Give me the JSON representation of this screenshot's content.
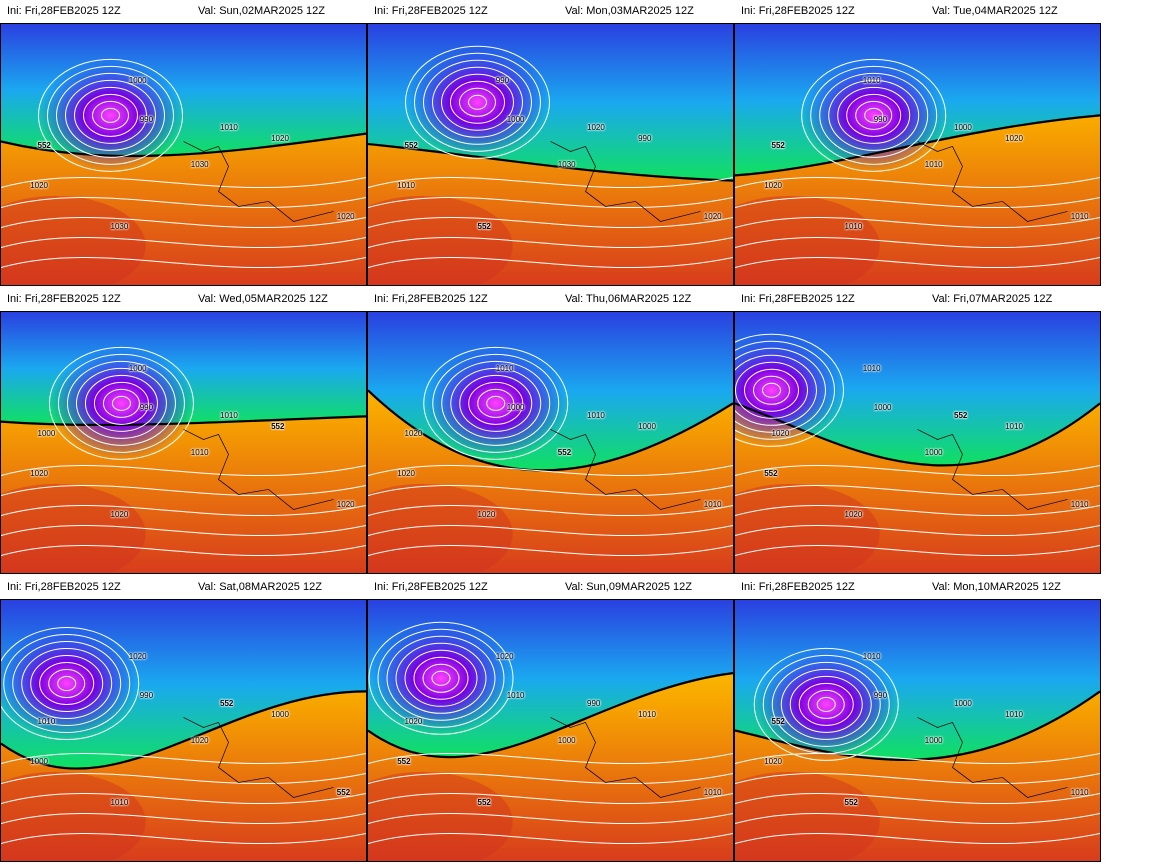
{
  "panels": [
    {
      "ini": "Ini: Fri,28FEB2025 12Z",
      "val": "Val: Sun,02MAR2025 12Z",
      "labels": [
        "1000",
        "990",
        "1010",
        "1020",
        "552",
        "1030",
        "1020",
        "1030",
        "1020"
      ]
    },
    {
      "ini": "Ini: Fri,28FEB2025 12Z",
      "val": "Val: Mon,03MAR2025 12Z",
      "labels": [
        "990",
        "1000",
        "1020",
        "990",
        "552",
        "1030",
        "1010",
        "552",
        "1020"
      ]
    },
    {
      "ini": "Ini: Fri,28FEB2025 12Z",
      "val": "Val: Tue,04MAR2025 12Z",
      "labels": [
        "1010",
        "990",
        "1000",
        "1020",
        "552",
        "1010",
        "1020",
        "1010",
        "1010"
      ]
    },
    {
      "ini": "Ini: Fri,28FEB2025 12Z",
      "val": "Val: Wed,05MAR2025 12Z",
      "labels": [
        "1000",
        "990",
        "1010",
        "552",
        "1000",
        "1010",
        "1020",
        "1020",
        "1020"
      ]
    },
    {
      "ini": "Ini: Fri,28FEB2025 12Z",
      "val": "Val: Thu,06MAR2025 12Z",
      "labels": [
        "1010",
        "1000",
        "1010",
        "1000",
        "1020",
        "552",
        "1020",
        "1020",
        "1010"
      ]
    },
    {
      "ini": "Ini: Fri,28FEB2025 12Z",
      "val": "Val: Fri,07MAR2025 12Z",
      "labels": [
        "1010",
        "1000",
        "552",
        "1010",
        "1020",
        "1000",
        "552",
        "1020",
        "1010"
      ]
    },
    {
      "ini": "Ini: Fri,28FEB2025 12Z",
      "val": "Val: Sat,08MAR2025 12Z",
      "labels": [
        "1020",
        "990",
        "552",
        "1000",
        "1010",
        "1020",
        "1000",
        "1010",
        "552"
      ]
    },
    {
      "ini": "Ini: Fri,28FEB2025 12Z",
      "val": "Val: Sun,09MAR2025 12Z",
      "labels": [
        "1020",
        "1010",
        "990",
        "1010",
        "1020",
        "1000",
        "552",
        "552",
        "1010"
      ]
    },
    {
      "ini": "Ini: Fri,28FEB2025 12Z",
      "val": "Val: Mon,10MAR2025 12Z",
      "labels": [
        "1010",
        "990",
        "1000",
        "1010",
        "552",
        "1000",
        "1020",
        "552",
        "1010"
      ]
    }
  ],
  "colors": {
    "low": "#7a00e0",
    "cold": "#1e6ee8",
    "mid": "#00e676",
    "warm": "#ffd400",
    "hot": "#d03020"
  }
}
